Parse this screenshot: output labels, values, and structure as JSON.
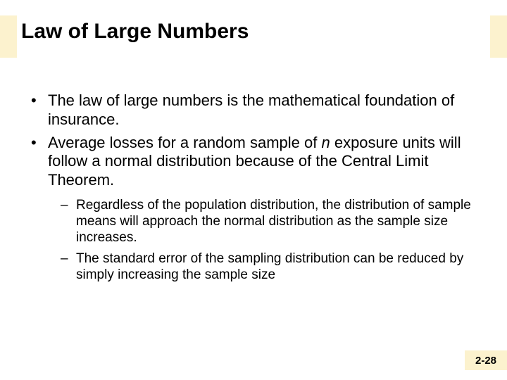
{
  "colors": {
    "accent_bg": "#fcf2ce",
    "text": "#000000",
    "page_bg": "#ffffff"
  },
  "title": "Law of Large Numbers",
  "bullets": [
    {
      "text_pre": "The law of large numbers is the mathematical foundation of insurance.",
      "italic": "",
      "text_post": ""
    },
    {
      "text_pre": "Average losses for a random sample of ",
      "italic": "n",
      "text_post": " exposure units will follow a normal distribution because of the Central Limit Theorem."
    }
  ],
  "sub_bullets": [
    "Regardless of the population distribution, the distribution of sample means will approach the normal distribution as the sample size increases.",
    "The standard error of the sampling distribution can be reduced by simply increasing the sample size"
  ],
  "page_number": "2-28"
}
